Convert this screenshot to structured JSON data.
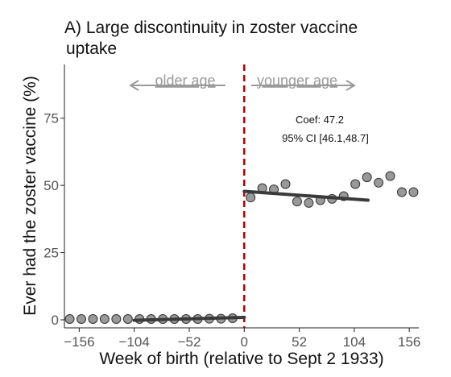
{
  "chart_data": {
    "type": "scatter",
    "title_line1": "A) Large discontinuity in zoster vaccine",
    "title_line2": "uptake",
    "xlabel": "Week of birth (relative to Sept 2 1933)",
    "ylabel": "Ever had the zoster vaccine (%)",
    "xlim": [
      -170,
      165
    ],
    "ylim": [
      -3,
      95
    ],
    "x_ticks": [
      -156,
      -104,
      -52,
      0,
      52,
      104,
      156
    ],
    "x_tick_labels": [
      "−156",
      "−104",
      "−52",
      "0",
      "52",
      "104",
      "156"
    ],
    "y_ticks": [
      0,
      25,
      50,
      75
    ],
    "y_tick_labels": [
      "0",
      "25",
      "50",
      "75"
    ],
    "cutoff_x": 0,
    "points": {
      "x": [
        -165,
        -154,
        -143,
        -132,
        -121,
        -110,
        -99,
        -88,
        -77,
        -66,
        -55,
        -44,
        -33,
        -22,
        -11,
        6,
        17,
        28,
        39,
        50,
        61,
        72,
        83,
        94,
        105,
        116,
        127,
        138,
        149,
        160
      ],
      "y": [
        0.3,
        0.3,
        0.3,
        0.3,
        0.3,
        0.3,
        0.3,
        0.3,
        0.3,
        0.3,
        0.3,
        0.3,
        0.4,
        0.4,
        0.6,
        45.5,
        49,
        48.5,
        50.5,
        44,
        43.5,
        44.5,
        45,
        46,
        50.5,
        53,
        51,
        53.5,
        47.5,
        47.5
      ]
    },
    "fit_left": {
      "x": [
        -104,
        0
      ],
      "y": [
        -0.2,
        0.9
      ]
    },
    "fit_right": {
      "x": [
        0,
        117
      ],
      "y": [
        47.8,
        44.5
      ]
    },
    "older_label": "older age",
    "younger_label": "younger age",
    "annotation_line1": "Coef: 47.2",
    "annotation_line2": "95% CI [46.1,48.7]",
    "colors": {
      "points": "#999999",
      "fit": "#3a3a3a",
      "cutoff": "#b00000",
      "arrow": "#9a9a9a"
    }
  }
}
